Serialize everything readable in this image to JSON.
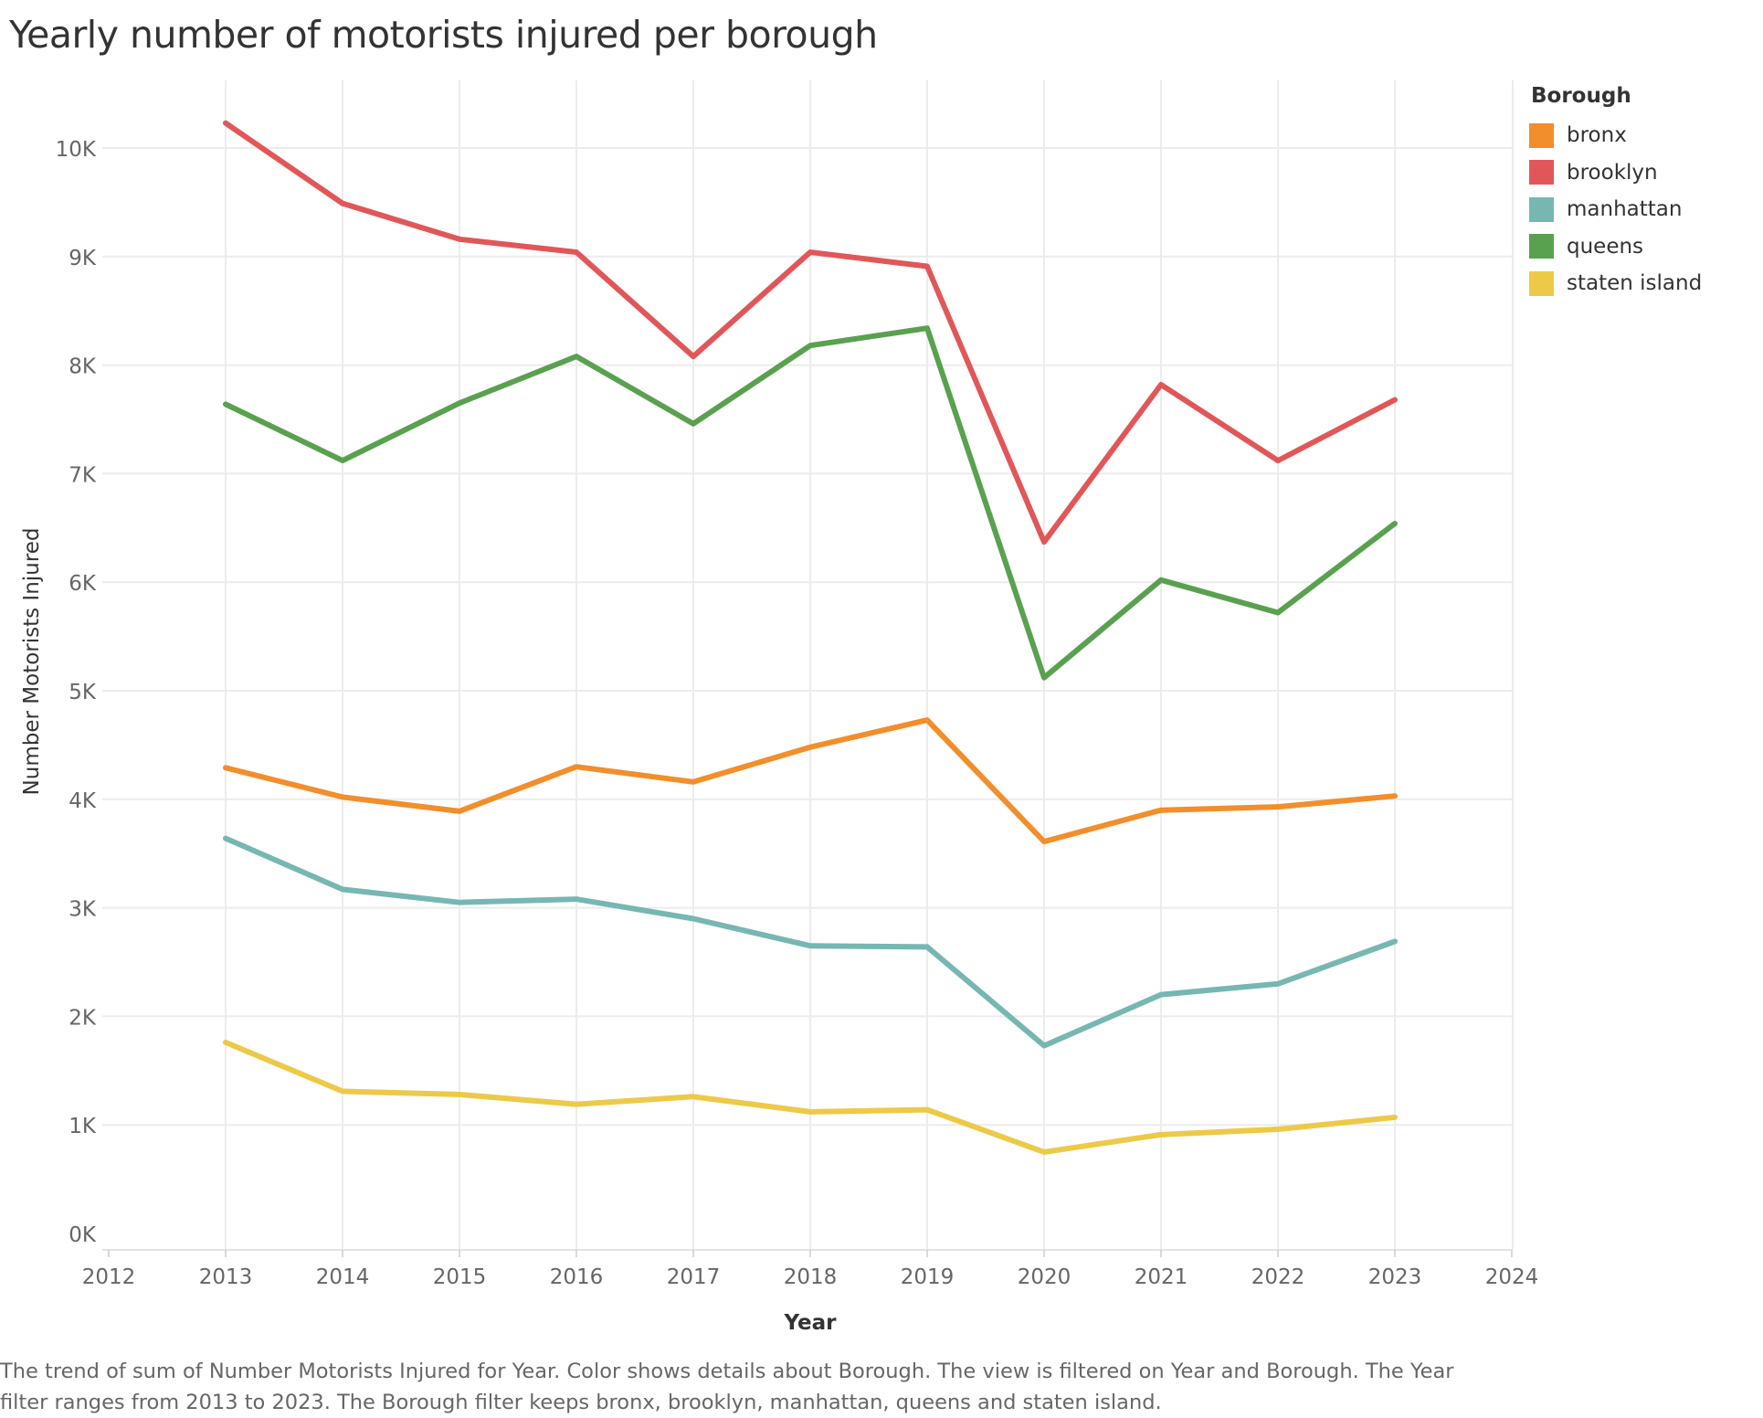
{
  "chart_data": {
    "type": "line",
    "title": "Yearly number of motorists injured per borough",
    "xlabel": "Year",
    "ylabel": "Number Motorists Injured",
    "x_ticks": [
      "2012",
      "2013",
      "2014",
      "2015",
      "2016",
      "2017",
      "2018",
      "2019",
      "2020",
      "2021",
      "2022",
      "2023",
      "2024"
    ],
    "y_ticks": [
      "0K",
      "1K",
      "2K",
      "3K",
      "4K",
      "5K",
      "6K",
      "7K",
      "8K",
      "9K",
      "10K"
    ],
    "xlim": [
      2012,
      2024
    ],
    "ylim": [
      0,
      10500
    ],
    "grid": true,
    "legend_title": "Borough",
    "legend_position": "right",
    "x": [
      2013,
      2014,
      2015,
      2016,
      2017,
      2018,
      2019,
      2020,
      2021,
      2022,
      2023
    ],
    "series": [
      {
        "name": "bronx",
        "color": "#f28e2b",
        "values": [
          4290,
          4020,
          3890,
          4300,
          4160,
          4480,
          4730,
          3610,
          3900,
          3930,
          4030
        ]
      },
      {
        "name": "brooklyn",
        "color": "#e15759",
        "values": [
          10230,
          9490,
          9160,
          9040,
          8080,
          9040,
          8910,
          6370,
          7820,
          7120,
          7680
        ]
      },
      {
        "name": "manhattan",
        "color": "#76b7b2",
        "values": [
          3640,
          3170,
          3050,
          3080,
          2900,
          2650,
          2640,
          1730,
          2200,
          2300,
          2690
        ]
      },
      {
        "name": "queens",
        "color": "#59a14f",
        "values": [
          7640,
          7120,
          7650,
          8080,
          7460,
          8180,
          8340,
          5120,
          6020,
          5720,
          6540
        ]
      },
      {
        "name": "staten island",
        "color": "#edc948",
        "values": [
          1760,
          1310,
          1280,
          1190,
          1260,
          1120,
          1140,
          750,
          910,
          960,
          1070
        ]
      }
    ]
  },
  "caption": "The trend of sum of Number Motorists Injured for Year.  Color shows details about Borough. The view is filtered on Year and Borough. The Year filter ranges from 2013 to 2023. The Borough filter keeps bronx, brooklyn, manhattan, queens and staten island."
}
